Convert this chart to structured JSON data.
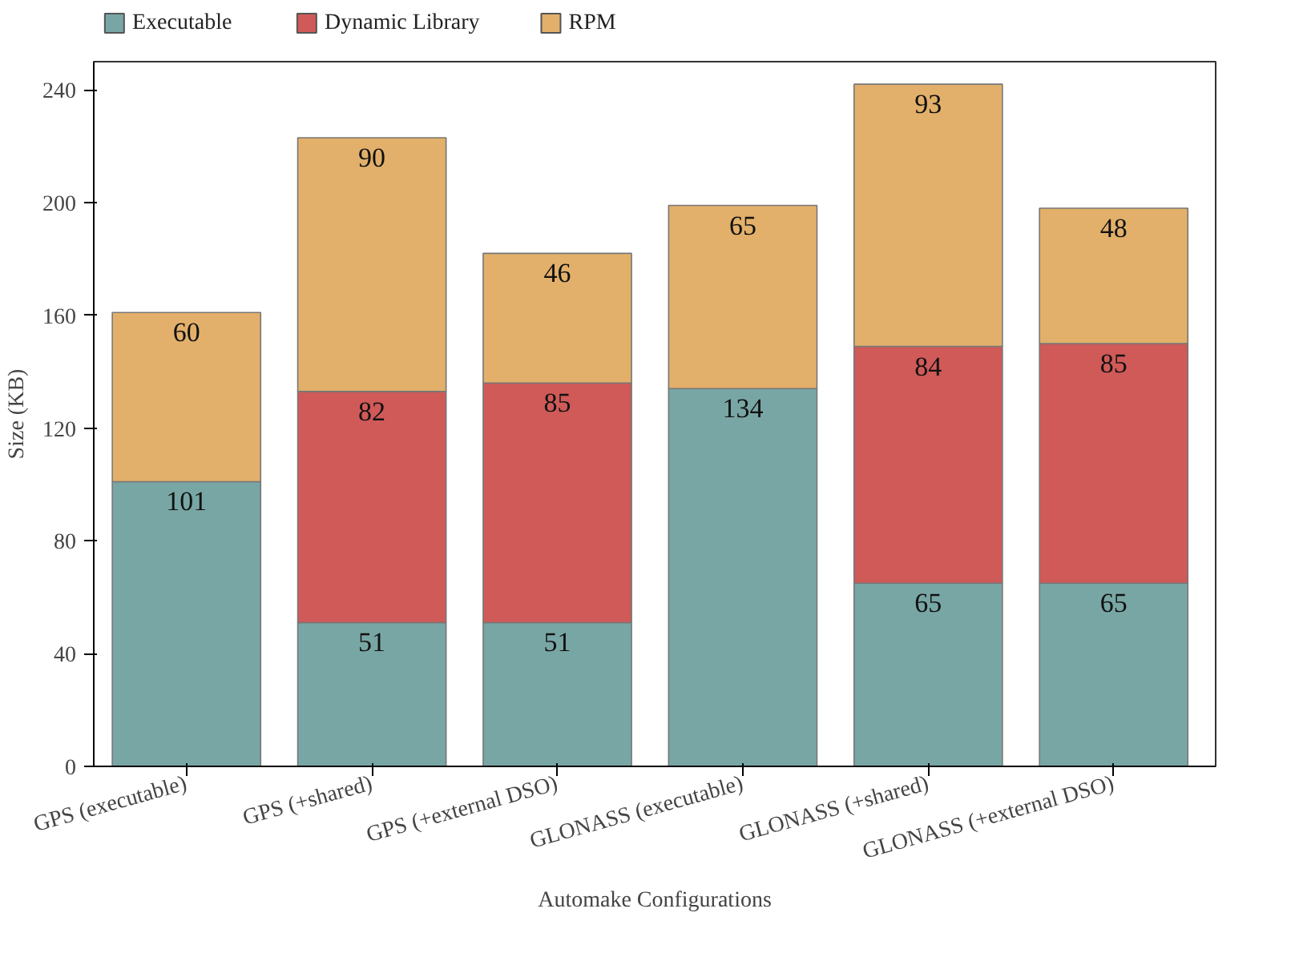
{
  "chart_data": {
    "type": "bar",
    "stacked": true,
    "xlabel": "Automake Configurations",
    "ylabel": "Size (KB)",
    "categories": [
      "GPS (executable)",
      "GPS (+shared)",
      "GPS (+external DSO)",
      "GLONASS (executable)",
      "GLONASS (+shared)",
      "GLONASS (+external DSO)"
    ],
    "series": [
      {
        "name": "Executable",
        "color": "#78a6a4",
        "values": [
          101,
          51,
          51,
          134,
          65,
          65
        ]
      },
      {
        "name": "Dynamic Library",
        "color": "#cf5a58",
        "values": [
          null,
          82,
          85,
          null,
          84,
          85
        ]
      },
      {
        "name": "RPM",
        "color": "#e2b06a",
        "values": [
          60,
          90,
          46,
          65,
          93,
          48
        ]
      }
    ],
    "ylim": [
      0,
      250
    ],
    "yticks": [
      0,
      40,
      80,
      120,
      160,
      200,
      240
    ],
    "grid": false,
    "legend": "top left",
    "data_labels": true
  }
}
